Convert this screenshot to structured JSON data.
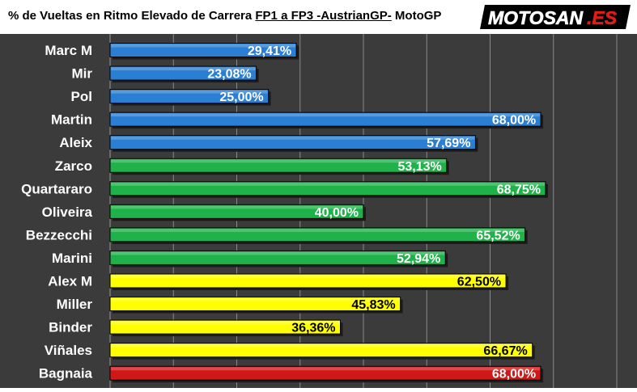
{
  "title": {
    "prefix": "% de Vueltas en Ritmo Elevado de Carrera ",
    "underlined": "FP1 a FP3 -AustrianGP-",
    "suffix": " MotoGP"
  },
  "logo": {
    "brand": "MOTOSAN",
    "suffix": ".ES"
  },
  "colors": {
    "blue": "#2a7fd4",
    "green": "#1fb24a",
    "yellow": "#ffff00",
    "red": "#d01818",
    "plot_bg": "#3b3b3b",
    "gridline": "#8a8a8a"
  },
  "chart_data": {
    "type": "bar",
    "orientation": "horizontal",
    "xlim": [
      0,
      80
    ],
    "grid": true,
    "legend": "none",
    "categories": [
      "Marc M",
      "Mir",
      "Pol",
      "Martin",
      "Aleix",
      "Zarco",
      "Quartararo",
      "Oliveira",
      "Bezzecchi",
      "Marini",
      "Alex M",
      "Miller",
      "Binder",
      "Viñales",
      "Bagnaia"
    ],
    "values": [
      29.41,
      23.08,
      25.0,
      68.0,
      57.69,
      53.13,
      68.75,
      40.0,
      65.52,
      52.94,
      62.5,
      45.83,
      36.36,
      66.67,
      68.0
    ],
    "labels": [
      "29,41%",
      "23,08%",
      "25,00%",
      "68,00%",
      "57,69%",
      "53,13%",
      "68,75%",
      "40,00%",
      "65,52%",
      "52,94%",
      "62,50%",
      "45,83%",
      "36,36%",
      "66,67%",
      "68,00%"
    ],
    "bar_colors": [
      "blue",
      "blue",
      "blue",
      "blue",
      "blue",
      "green",
      "green",
      "green",
      "green",
      "green",
      "yellow",
      "yellow",
      "yellow",
      "yellow",
      "red"
    ]
  }
}
